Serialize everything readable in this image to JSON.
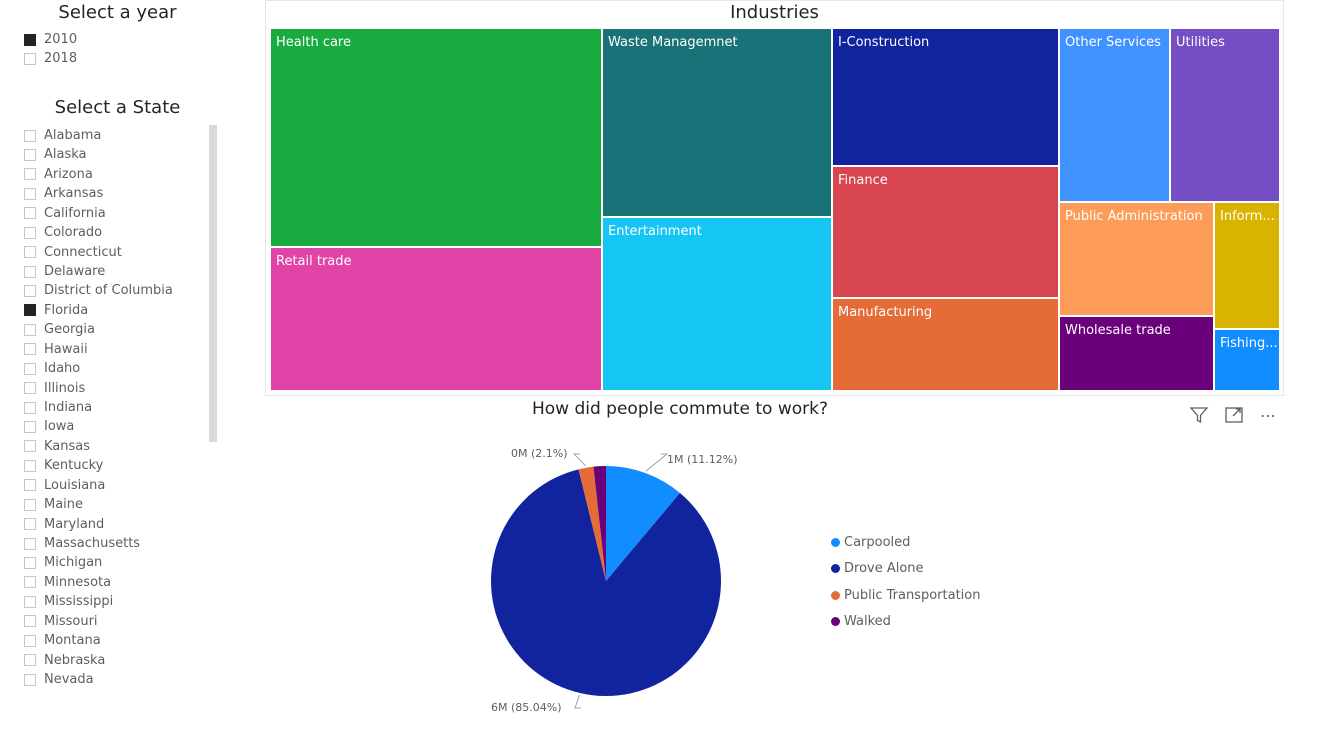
{
  "year_slicer": {
    "title": "Select a year",
    "options": [
      {
        "label": "2010",
        "checked": true
      },
      {
        "label": "2018",
        "checked": false
      }
    ]
  },
  "state_slicer": {
    "title": "Select a State",
    "options": [
      {
        "label": "Alabama",
        "checked": false
      },
      {
        "label": "Alaska",
        "checked": false
      },
      {
        "label": "Arizona",
        "checked": false
      },
      {
        "label": "Arkansas",
        "checked": false
      },
      {
        "label": "California",
        "checked": false
      },
      {
        "label": "Colorado",
        "checked": false
      },
      {
        "label": "Connecticut",
        "checked": false
      },
      {
        "label": "Delaware",
        "checked": false
      },
      {
        "label": "District of Columbia",
        "checked": false
      },
      {
        "label": "Florida",
        "checked": true
      },
      {
        "label": "Georgia",
        "checked": false
      },
      {
        "label": "Hawaii",
        "checked": false
      },
      {
        "label": "Idaho",
        "checked": false
      },
      {
        "label": "Illinois",
        "checked": false
      },
      {
        "label": "Indiana",
        "checked": false
      },
      {
        "label": "Iowa",
        "checked": false
      },
      {
        "label": "Kansas",
        "checked": false
      },
      {
        "label": "Kentucky",
        "checked": false
      },
      {
        "label": "Louisiana",
        "checked": false
      },
      {
        "label": "Maine",
        "checked": false
      },
      {
        "label": "Maryland",
        "checked": false
      },
      {
        "label": "Massachusetts",
        "checked": false
      },
      {
        "label": "Michigan",
        "checked": false
      },
      {
        "label": "Minnesota",
        "checked": false
      },
      {
        "label": "Mississippi",
        "checked": false
      },
      {
        "label": "Missouri",
        "checked": false
      },
      {
        "label": "Montana",
        "checked": false
      },
      {
        "label": "Nebraska",
        "checked": false
      },
      {
        "label": "Nevada",
        "checked": false
      }
    ]
  },
  "toolbar": {
    "filter_icon": "filter-icon",
    "focus_icon": "focus-mode-icon",
    "more_icon": "more-options-icon",
    "more_glyph": "⋯"
  },
  "chart_data": [
    {
      "type": "treemap",
      "title": "Industries",
      "tiles": [
        {
          "label": "Health care",
          "color": "#1aab40"
        },
        {
          "label": "Retail trade",
          "color": "#e044a7"
        },
        {
          "label": "Waste Managemnet",
          "color": "#197278"
        },
        {
          "label": "Entertainment",
          "color": "#15c6f4"
        },
        {
          "label": "I-Construction",
          "color": "#12239e"
        },
        {
          "label": "Finance",
          "color": "#d64550"
        },
        {
          "label": "Manufacturing",
          "color": "#e66c37"
        },
        {
          "label": "Other Services",
          "color": "#4092ff"
        },
        {
          "label": "Utilities",
          "color": "#744ec2"
        },
        {
          "label": "Public Administration",
          "color": "#fd9c58"
        },
        {
          "label": "Inform...",
          "color": "#d9b300"
        },
        {
          "label": "Wholesale trade",
          "color": "#6b007b"
        },
        {
          "label": "Fishing...",
          "color": "#118dff"
        }
      ]
    },
    {
      "type": "pie",
      "title": "How did people commute to work?",
      "slices": [
        {
          "name": "Carpooled",
          "percent": 11.12,
          "label": "1M (11.12%)",
          "color": "#118dff"
        },
        {
          "name": "Drove Alone",
          "percent": 85.04,
          "label": "6M (85.04%)",
          "color": "#12239e"
        },
        {
          "name": "Public Transportation",
          "percent": 2.1,
          "label": "0M (2.1%)",
          "color": "#e66c37"
        },
        {
          "name": "Walked",
          "percent": 1.74,
          "label": "",
          "color": "#6b007b"
        }
      ],
      "legend_position": "right"
    }
  ]
}
